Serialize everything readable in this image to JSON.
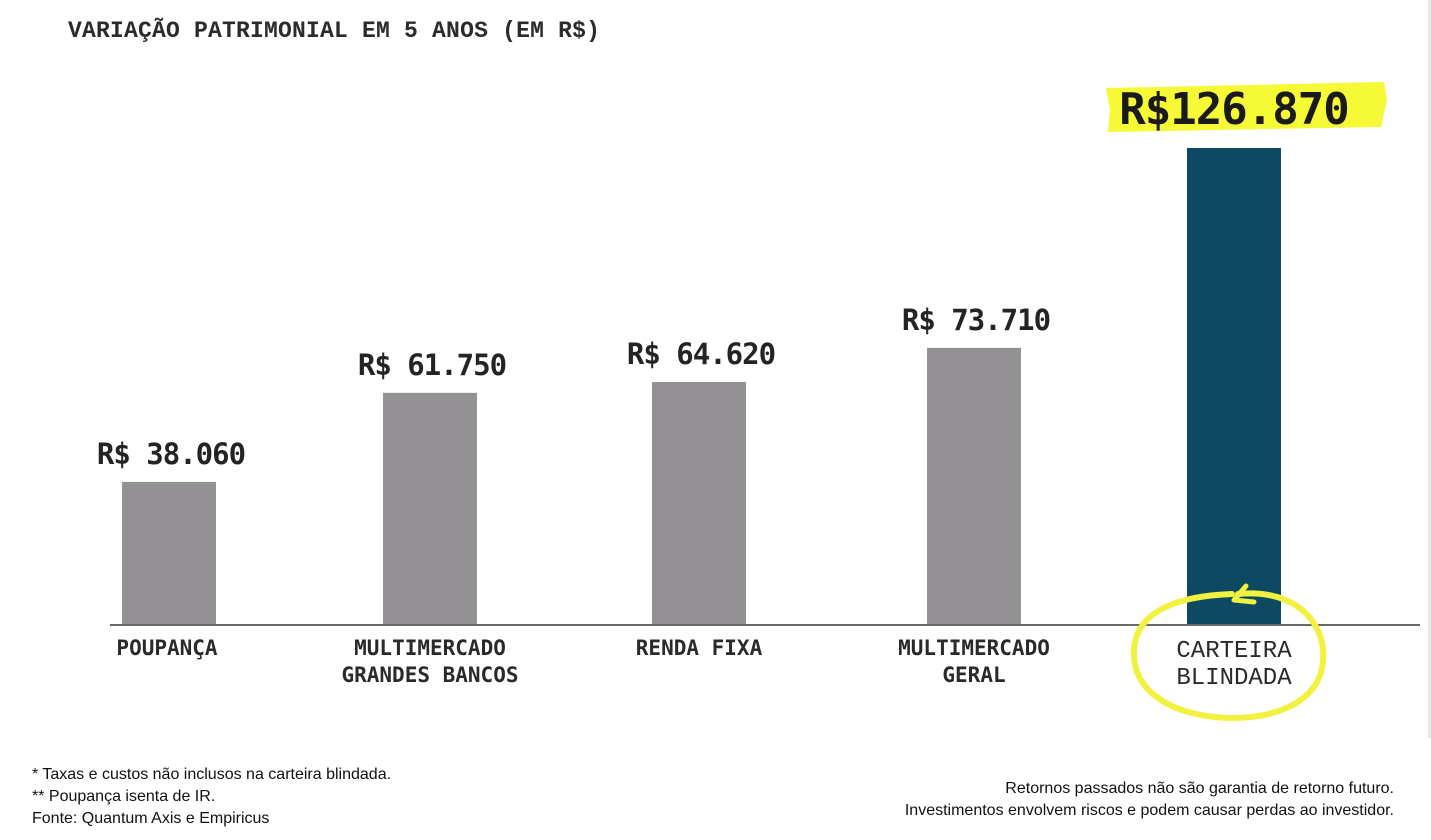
{
  "chart_data": {
    "type": "bar",
    "title": "VARIAÇÃO PATRIMONIAL EM 5 ANOS (EM R$)",
    "categories": [
      [
        "POUPANÇA"
      ],
      [
        "MULTIMERCADO",
        "GRANDES BANCOS"
      ],
      [
        "RENDA FIXA"
      ],
      [
        "MULTIMERCADO",
        "GERAL"
      ],
      [
        "CARTEIRA",
        "BLINDADA"
      ]
    ],
    "values": [
      38060,
      61750,
      64620,
      73710,
      126870
    ],
    "data_labels": [
      "R$ 38.060",
      "R$ 61.750",
      "R$ 64.620",
      "R$ 73.710",
      "R$126.870"
    ],
    "ylim": [
      0,
      126870
    ],
    "grid": false,
    "legend": "none",
    "highlight_index": 4,
    "colors": {
      "bar": "#939193",
      "highlight_bar": "#0d4a62",
      "highlighter": "#f6f936",
      "circle": "#f1f13f",
      "axis": "#6a6a6a",
      "label_text": "#2a2a2a"
    }
  },
  "footnotes": {
    "left": [
      "* Taxas e custos não inclusos na carteira blindada.",
      "** Poupança isenta de IR.",
      "Fonte: Quantum Axis e Empiricus"
    ],
    "right": [
      "Retornos passados não são garantia de retorno futuro.",
      "Investimentos envolvem riscos e podem causar perdas ao investidor."
    ]
  }
}
